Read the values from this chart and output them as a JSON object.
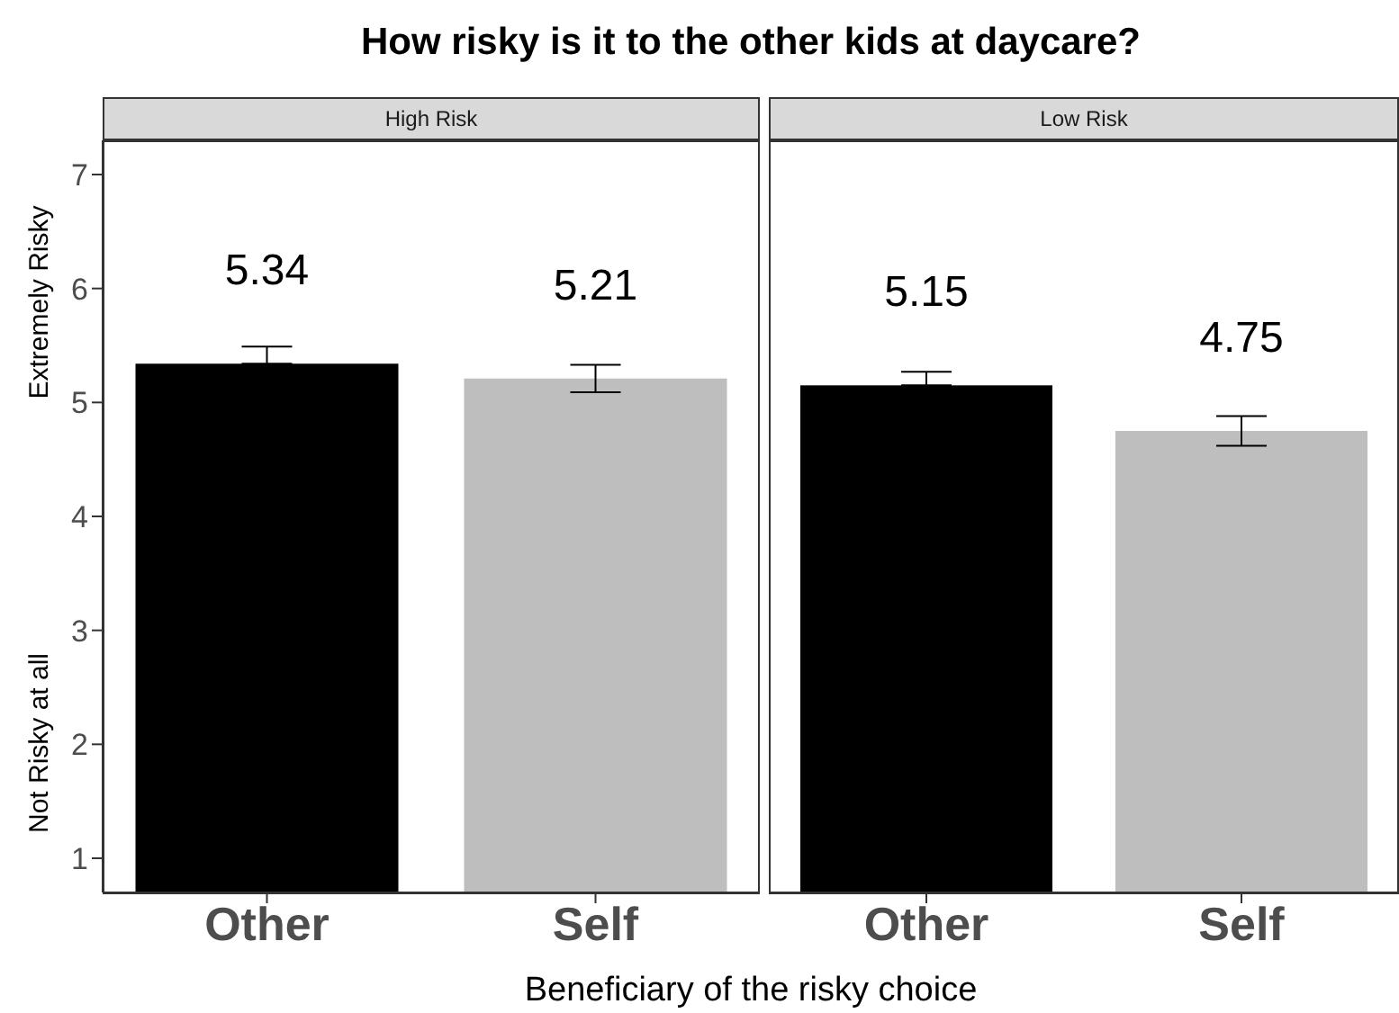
{
  "chart_data": [
    {
      "type": "bar",
      "title": "How risky is it to the other kids at daycare?",
      "subtitle": "High Risk",
      "xlabel": "Beneficiary of the risky choice",
      "ylabel": "Not Risky at all",
      "annotations": [
        "Extremely Risky"
      ],
      "categories": [
        "Other",
        "Self"
      ],
      "values": [
        5.34,
        5.21
      ],
      "errors": [
        [
          5.34,
          5.49
        ],
        [
          5.09,
          5.33
        ]
      ],
      "colors": [
        "#000000",
        "#bebebe"
      ],
      "data_labels": true,
      "ylim": [
        0.7,
        7.3
      ],
      "yticks": [
        1,
        2,
        3,
        4,
        5,
        6,
        7
      ],
      "grid": false,
      "legend": false
    },
    {
      "type": "bar",
      "subtitle": "Low Risk",
      "categories": [
        "Other",
        "Self"
      ],
      "values": [
        5.15,
        4.75
      ],
      "errors": [
        [
          5.15,
          5.27
        ],
        [
          4.62,
          4.88
        ]
      ],
      "colors": [
        "#000000",
        "#bebebe"
      ],
      "data_labels": true,
      "ylim": [
        0.7,
        7.3
      ],
      "yticks": [
        1,
        2,
        3,
        4,
        5,
        6,
        7
      ],
      "grid": false,
      "legend": false,
      "tick_labels": "x"
    }
  ]
}
